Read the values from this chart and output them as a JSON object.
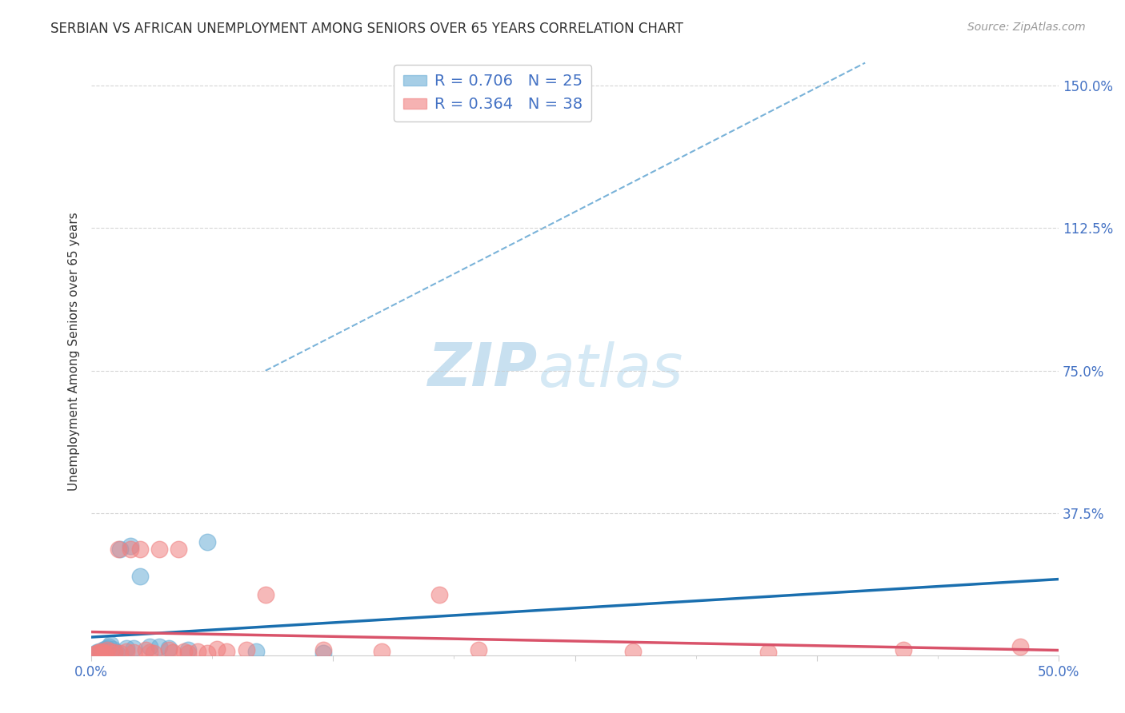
{
  "title": "SERBIAN VS AFRICAN UNEMPLOYMENT AMONG SENIORS OVER 65 YEARS CORRELATION CHART",
  "source": "Source: ZipAtlas.com",
  "ylabel": "Unemployment Among Seniors over 65 years",
  "right_yticks": [
    "150.0%",
    "112.5%",
    "75.0%",
    "37.5%"
  ],
  "right_ytick_vals": [
    1.5,
    1.125,
    0.75,
    0.375
  ],
  "xlim": [
    0.0,
    0.5
  ],
  "ylim": [
    0.0,
    1.6
  ],
  "serbian_R": 0.706,
  "serbian_N": 25,
  "african_R": 0.364,
  "african_N": 38,
  "serbian_color": "#6baed6",
  "african_color": "#f08080",
  "trendline_serbian_color": "#1a6faf",
  "trendline_african_color": "#d9536a",
  "dashed_extension_color": "#7ab3d9",
  "background_color": "#ffffff",
  "grid_color": "#cccccc",
  "serbian_x": [
    0.002,
    0.003,
    0.004,
    0.005,
    0.006,
    0.006,
    0.007,
    0.008,
    0.009,
    0.01,
    0.011,
    0.012,
    0.013,
    0.015,
    0.018,
    0.02,
    0.022,
    0.025,
    0.03,
    0.035,
    0.04,
    0.05,
    0.06,
    0.085,
    0.12
  ],
  "serbian_y": [
    0.005,
    0.01,
    0.012,
    0.008,
    0.015,
    0.01,
    0.018,
    0.02,
    0.025,
    0.03,
    0.018,
    0.012,
    0.008,
    0.28,
    0.02,
    0.29,
    0.02,
    0.21,
    0.025,
    0.025,
    0.02,
    0.015,
    0.3,
    0.012,
    0.008
  ],
  "african_x": [
    0.002,
    0.003,
    0.004,
    0.005,
    0.006,
    0.007,
    0.008,
    0.01,
    0.012,
    0.014,
    0.015,
    0.018,
    0.02,
    0.022,
    0.025,
    0.028,
    0.03,
    0.032,
    0.035,
    0.04,
    0.042,
    0.045,
    0.048,
    0.05,
    0.055,
    0.06,
    0.065,
    0.07,
    0.08,
    0.09,
    0.12,
    0.15,
    0.18,
    0.2,
    0.28,
    0.35,
    0.42,
    0.48
  ],
  "african_y": [
    0.005,
    0.008,
    0.01,
    0.012,
    0.01,
    0.008,
    0.015,
    0.012,
    0.01,
    0.28,
    0.008,
    0.012,
    0.28,
    0.01,
    0.28,
    0.015,
    0.01,
    0.008,
    0.28,
    0.015,
    0.01,
    0.28,
    0.012,
    0.008,
    0.012,
    0.008,
    0.018,
    0.012,
    0.015,
    0.16,
    0.015,
    0.012,
    0.16,
    0.015,
    0.012,
    0.01,
    0.015,
    0.025
  ]
}
